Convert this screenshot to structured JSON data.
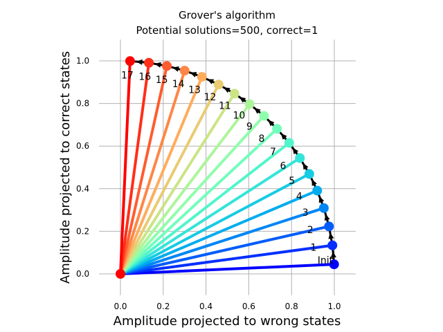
{
  "chart_data": {
    "type": "line",
    "title": "Grover's algorithm",
    "subtitle": "Potential solutions=500, correct=1",
    "xlabel": "Amplitude projected to wrong states",
    "ylabel": "Amplitude projected to correct states",
    "xlim": [
      -0.1,
      1.1
    ],
    "ylim": [
      -0.1,
      1.1
    ],
    "xticks": [
      "0.0",
      "0.2",
      "0.4",
      "0.6",
      "0.8",
      "1.0"
    ],
    "yticks": [
      "0.0",
      "0.2",
      "0.4",
      "0.6",
      "0.8",
      "1.0"
    ],
    "grid": true,
    "origin": [
      0.0,
      0.0
    ],
    "colormap": "rainbow",
    "points": [
      {
        "label": "Init",
        "x": 0.999,
        "y": 0.045
      },
      {
        "label": "1",
        "x": 0.991,
        "y": 0.134
      },
      {
        "label": "2",
        "x": 0.975,
        "y": 0.223
      },
      {
        "label": "3",
        "x": 0.951,
        "y": 0.309
      },
      {
        "label": "4",
        "x": 0.92,
        "y": 0.391
      },
      {
        "label": "5",
        "x": 0.883,
        "y": 0.469
      },
      {
        "label": "6",
        "x": 0.839,
        "y": 0.544
      },
      {
        "label": "7",
        "x": 0.789,
        "y": 0.615
      },
      {
        "label": "8",
        "x": 0.732,
        "y": 0.681
      },
      {
        "label": "9",
        "x": 0.671,
        "y": 0.742
      },
      {
        "label": "10",
        "x": 0.604,
        "y": 0.797
      },
      {
        "label": "11",
        "x": 0.533,
        "y": 0.846
      },
      {
        "label": "12",
        "x": 0.459,
        "y": 0.889
      },
      {
        "label": "13",
        "x": 0.381,
        "y": 0.925
      },
      {
        "label": "14",
        "x": 0.3,
        "y": 0.954
      },
      {
        "label": "15",
        "x": 0.217,
        "y": 0.976
      },
      {
        "label": "16",
        "x": 0.133,
        "y": 0.991
      },
      {
        "label": "17",
        "x": 0.045,
        "y": 0.999
      }
    ]
  }
}
